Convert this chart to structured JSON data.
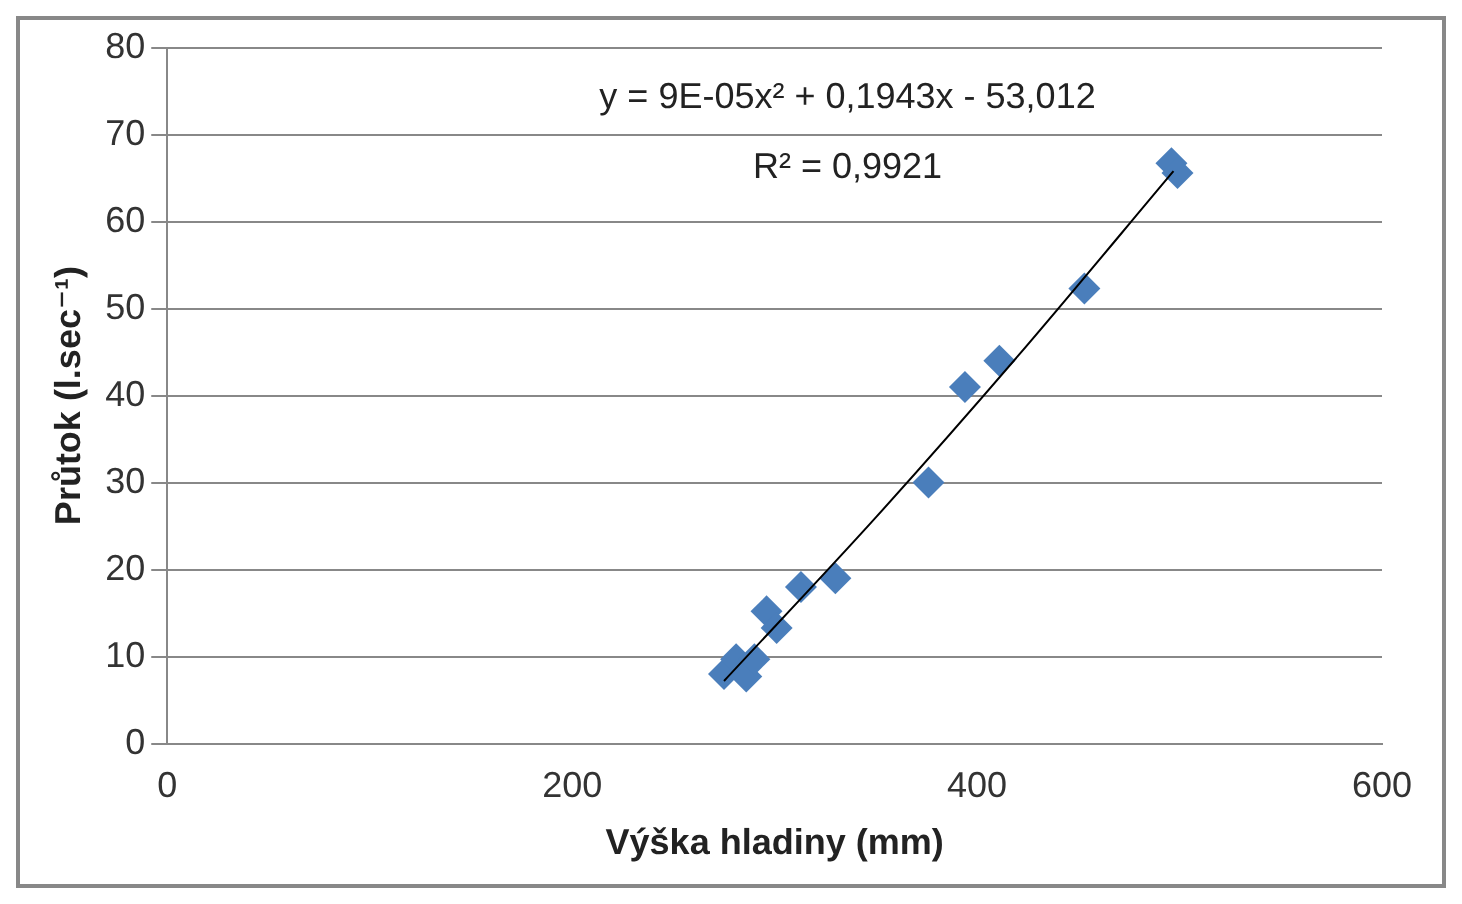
{
  "chart_data": {
    "type": "scatter",
    "xlabel": "Výška hladiny (mm)",
    "ylabel": "Průtok (l.sec⁻¹)",
    "annotations": [
      "y = 9E-05x² + 0,1943x - 53,012",
      "R² = 0,9921"
    ],
    "series": [
      {
        "type": "scatter",
        "color": "#4a7ebb",
        "marker": "diamond",
        "x": [
          275,
          281,
          286,
          290,
          296,
          301,
          313,
          330,
          376,
          394,
          411,
          453,
          496,
          499
        ],
        "values": [
          8,
          9.7,
          7.7,
          9.7,
          15.2,
          13.3,
          18,
          19,
          30,
          41,
          44,
          52.3,
          66.7,
          65.6
        ]
      },
      {
        "type": "line",
        "color": "#000000",
        "marker": "none",
        "x": [
          275,
          350,
          420,
          497
        ],
        "values": [
          7.2,
          26,
          44.5,
          65.8
        ]
      }
    ],
    "xlim": [
      0,
      600
    ],
    "xticks": [
      0,
      200,
      400,
      600
    ],
    "ylim": [
      0,
      80
    ],
    "yticks": [
      0,
      10,
      20,
      30,
      40,
      50,
      60,
      70,
      80
    ],
    "grid": "y",
    "legend": false
  }
}
